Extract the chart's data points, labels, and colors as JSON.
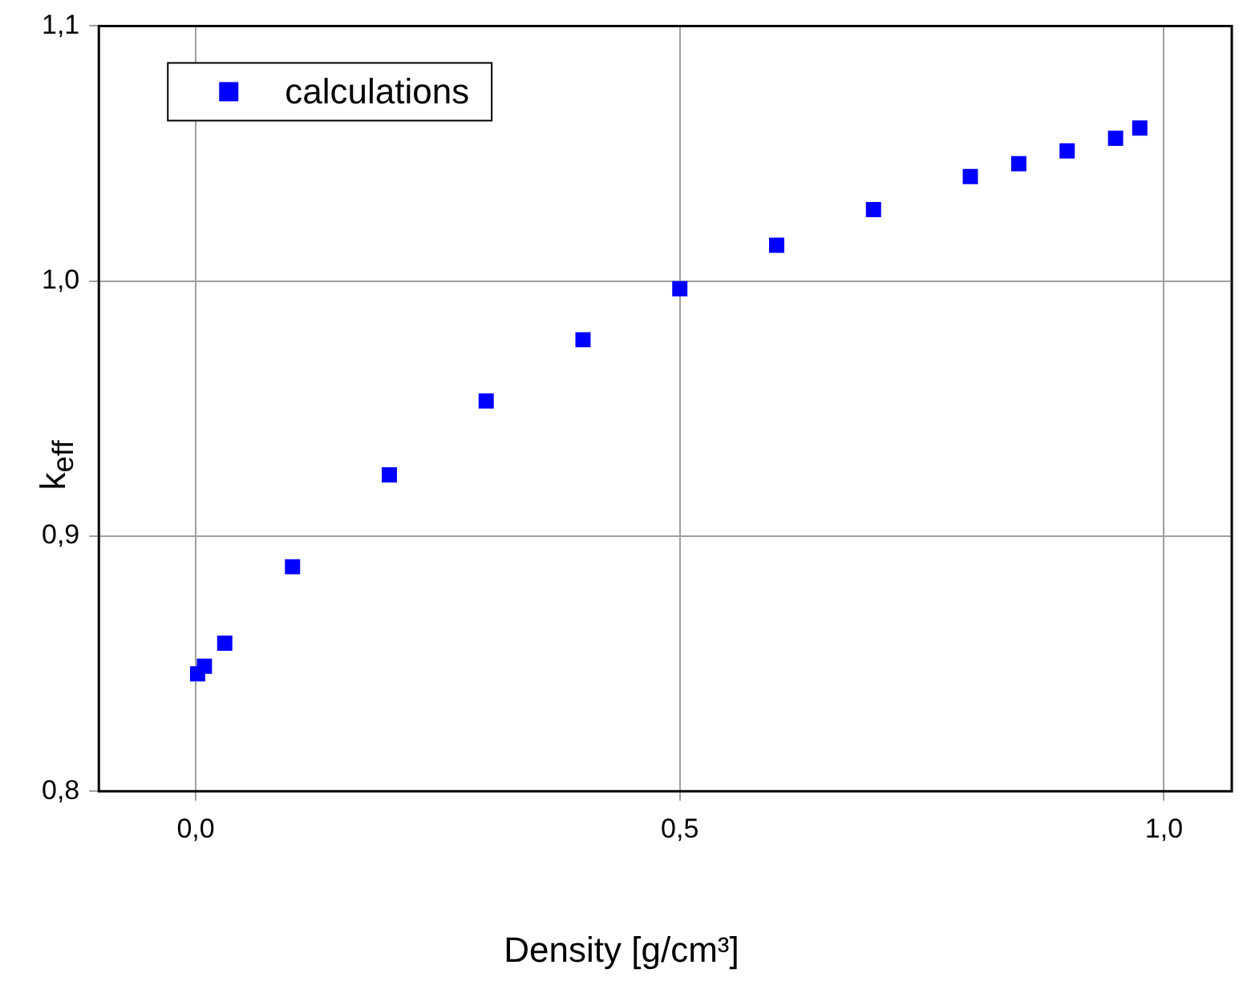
{
  "chart_data": {
    "type": "scatter",
    "xlabel": "Density [g/cm³]",
    "ylabel": "k$_{eff}$",
    "xlim": [
      -0.1,
      1.07
    ],
    "ylim": [
      0.8,
      1.1
    ],
    "xticks": [
      {
        "value": 0,
        "label": "0,0"
      },
      {
        "value": 0.5,
        "label": "0,5"
      },
      {
        "value": 1,
        "label": "1,0"
      }
    ],
    "yticks": [
      {
        "value": 0.8,
        "label": "0,8"
      },
      {
        "value": 0.9,
        "label": "0,9"
      },
      {
        "value": 1,
        "label": "1,0"
      },
      {
        "value": 1.1,
        "label": "1,1"
      }
    ],
    "grid": true,
    "legend": "top left",
    "marker": "square",
    "series": [
      {
        "name": "calculations",
        "color": "#0000ff",
        "x": [
          0.002,
          0.009,
          0.03,
          0.1,
          0.2,
          0.3,
          0.4,
          0.5,
          0.6,
          0.7,
          0.8,
          0.85,
          0.9,
          0.95,
          0.975
        ],
        "values": [
          0.846,
          0.849,
          0.858,
          0.888,
          0.924,
          0.953,
          0.977,
          0.997,
          1.014,
          1.028,
          1.041,
          1.046,
          1.051,
          1.056,
          1.06
        ]
      }
    ]
  }
}
